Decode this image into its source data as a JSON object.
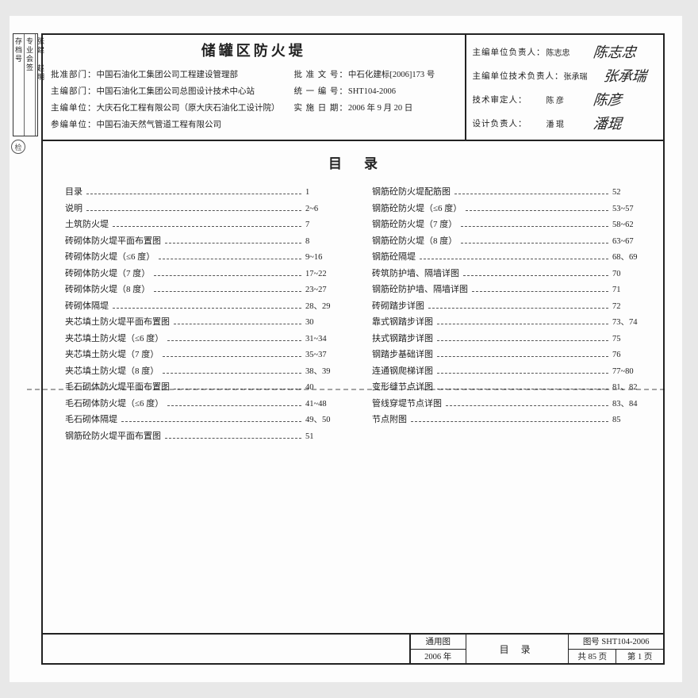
{
  "sidebar": {
    "c1": "存档号",
    "c2": "专业会签",
    "c3": "张建 赵明"
  },
  "stamp": "检",
  "header": {
    "title": "储罐区防火堤",
    "left": {
      "r1_lbl": "批准部门：",
      "r1_val": "中国石油化工集团公司工程建设管理部",
      "r2_lbl": "主编部门：",
      "r2_val": "中国石油化工集团公司总图设计技术中心站",
      "r3_lbl": "主编单位：",
      "r3_val": "大庆石化工程有限公司（原大庆石油化工设计院）",
      "r4_lbl": "参编单位：",
      "r4_val": "中国石油天然气管道工程有限公司"
    },
    "right": {
      "r1_lbl": "批 准 文 号：",
      "r1_val": "中石化建标[2006]173 号",
      "r2_lbl": "统 一 编 号：",
      "r2_val": "SHT104-2006",
      "r3_lbl": "实 施 日 期：",
      "r3_val": "2006 年 9 月 20 日"
    },
    "sign": {
      "s1_lbl": "主编单位负责人：",
      "s1_name": "陈志忠",
      "s1_sig": "陈志忠",
      "s2_lbl": "主编单位技术负责人：",
      "s2_name": "张承瑞",
      "s2_sig": "张承瑞",
      "s3_lbl": "技术审定人：",
      "s3_name": "陈 彦",
      "s3_sig": "陈彦",
      "s4_lbl": "设计负责人：",
      "s4_name": "潘 琨",
      "s4_sig": "潘琨"
    }
  },
  "toc": {
    "title": "目录",
    "col1": [
      {
        "n": "目录",
        "p": "1"
      },
      {
        "n": "说明",
        "p": "2~6"
      },
      {
        "n": "土筑防火堤",
        "p": "7"
      },
      {
        "n": "砖砌体防火堤平面布置图",
        "p": "8"
      },
      {
        "n": "砖砌体防火堤（≤6 度）",
        "p": "9~16"
      },
      {
        "n": "砖砌体防火堤（7 度）",
        "p": "17~22"
      },
      {
        "n": "砖砌体防火堤（8 度）",
        "p": "23~27"
      },
      {
        "n": "砖砌体隔堤",
        "p": "28、29"
      },
      {
        "n": "夹芯填土防火堤平面布置图",
        "p": "30"
      },
      {
        "n": "夹芯填土防火堤（≤6 度）",
        "p": "31~34"
      },
      {
        "n": "夹芯填土防火堤（7 度）",
        "p": "35~37"
      },
      {
        "n": "夹芯填土防火堤（8 度）",
        "p": "38、39"
      },
      {
        "n": "毛石砌体防火堤平面布置图",
        "p": "40"
      },
      {
        "n": "毛石砌体防火堤（≤6 度）",
        "p": "41~48"
      },
      {
        "n": "毛石砌体隔堤",
        "p": "49、50"
      },
      {
        "n": "钢筋砼防火堤平面布置图",
        "p": "51"
      }
    ],
    "col2": [
      {
        "n": "钢筋砼防火堤配筋图",
        "p": "52"
      },
      {
        "n": "钢筋砼防火堤（≤6 度）",
        "p": "53~57"
      },
      {
        "n": "钢筋砼防火堤（7 度）",
        "p": "58~62"
      },
      {
        "n": "钢筋砼防火堤（8 度）",
        "p": "63~67"
      },
      {
        "n": "钢筋砼隔堤",
        "p": "68、69"
      },
      {
        "n": "砖筑防护墙、隔墙详图",
        "p": "70"
      },
      {
        "n": "钢筋砼防护墙、隔墙详图",
        "p": "71"
      },
      {
        "n": "砖砌踏步详图",
        "p": "72"
      },
      {
        "n": "靠式钢踏步详图",
        "p": "73、74"
      },
      {
        "n": "扶式钢踏步详图",
        "p": "75"
      },
      {
        "n": "钢踏步基础详图",
        "p": "76"
      },
      {
        "n": "连通钢爬梯详图",
        "p": "77~80"
      },
      {
        "n": "变形缝节点详图",
        "p": "81、82"
      },
      {
        "n": "管线穿堤节点详图",
        "p": "83、84"
      },
      {
        "n": "节点附图",
        "p": "85"
      }
    ]
  },
  "footer": {
    "c1a": "通用图",
    "c1b": "2006 年",
    "c2": "目 录",
    "c3a": "图号 SHT104-2006",
    "c3b_l": "共 85 页",
    "c3b_r": "第 1 页"
  }
}
